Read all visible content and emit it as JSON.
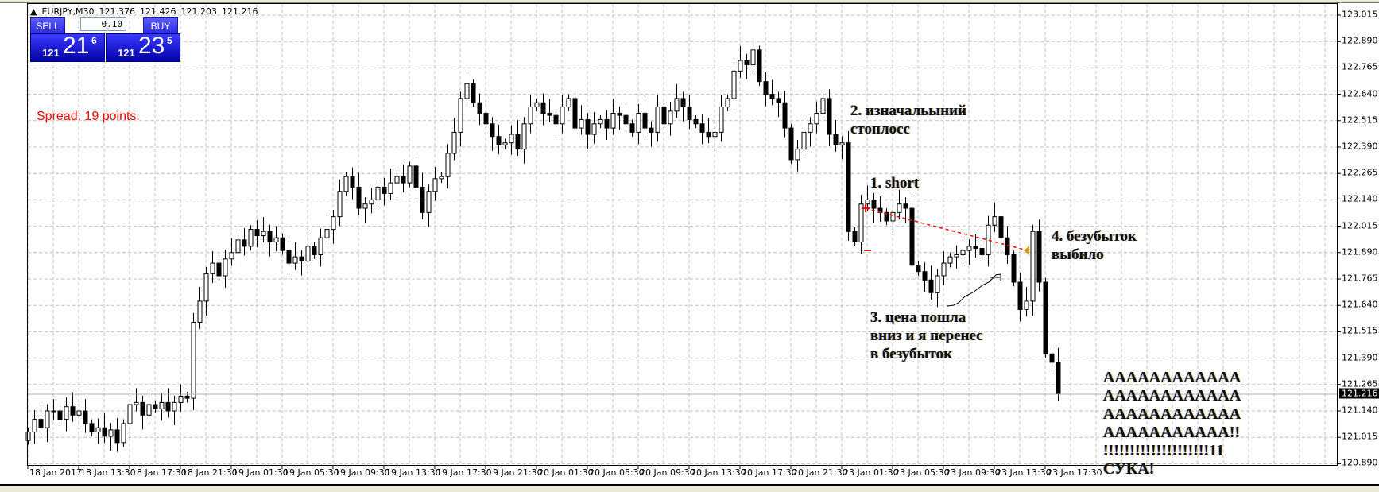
{
  "header": {
    "symbol": "EURJPY,M30",
    "open": "121.376",
    "high": "121.426",
    "low": "121.203",
    "close": "121.216",
    "arrow_icon": "triangle-up"
  },
  "trade_panel": {
    "sell_label": "SELL",
    "buy_label": "BUY",
    "lot": "0.10",
    "sell_price": {
      "big": "121",
      "mid": "21",
      "sup": "6"
    },
    "buy_price": {
      "big": "121",
      "mid": "23",
      "sup": "5"
    },
    "color": "#1a1ae0"
  },
  "spread_text": "Spread: 19 points.",
  "annotations": {
    "note1": "1. short",
    "note2": [
      "2. изначальыний",
      "стоплосс"
    ],
    "note3": [
      "3. цена пошла",
      "вниз и я перенес",
      "в безубыток"
    ],
    "note4": [
      "4. безубыток",
      "выбило"
    ],
    "note5": [
      "AAAAAAAAAAAA",
      "AAAAAAAAAAAA",
      "AAAAAAAAAAAA",
      "AAAAAAAAAAA!!",
      "!!!!!!!!!!!!!!!!!!!!11",
      "СУКА!"
    ]
  },
  "chart_data": {
    "type": "candlestick",
    "symbol": "EURJPY",
    "timeframe": "M30",
    "ylim": [
      120.89,
      123.015
    ],
    "grid": true,
    "current_price": "121.216",
    "price_ticks": [
      "123.015",
      "122.890",
      "122.765",
      "122.640",
      "122.515",
      "122.390",
      "122.265",
      "122.140",
      "122.015",
      "121.890",
      "121.765",
      "121.640",
      "121.515",
      "121.390",
      "121.265",
      "121.140",
      "121.015",
      "120.890"
    ],
    "date_ticks": [
      "18 Jan 2017",
      "18 Jan 13:30",
      "18 Jan 17:30",
      "18 Jan 21:30",
      "19 Jan 01:30",
      "19 Jan 05:30",
      "19 Jan 09:30",
      "19 Jan 13:30",
      "19 Jan 17:30",
      "19 Jan 21:30",
      "20 Jan 01:30",
      "20 Jan 05:30",
      "20 Jan 09:30",
      "20 Jan 13:30",
      "20 Jan 17:30",
      "20 Jan 21:30",
      "23 Jan 01:30",
      "23 Jan 05:30",
      "23 Jan 09:30",
      "23 Jan 13:30",
      "23 Jan 17:30"
    ],
    "close": [
      121.04,
      121.1,
      121.06,
      121.14,
      121.14,
      121.1,
      121.16,
      121.12,
      121.14,
      121.08,
      121.04,
      121.06,
      121.02,
      121.05,
      120.99,
      121.08,
      121.17,
      121.18,
      121.12,
      121.17,
      121.15,
      121.18,
      121.14,
      121.18,
      121.21,
      121.2,
      121.56,
      121.66,
      121.79,
      121.84,
      121.78,
      121.86,
      121.89,
      121.95,
      121.92,
      122.0,
      121.97,
      121.99,
      121.94,
      121.96,
      121.9,
      121.84,
      121.87,
      121.85,
      121.92,
      121.88,
      121.96,
      122.0,
      122.06,
      122.18,
      122.25,
      122.2,
      122.1,
      122.12,
      122.14,
      122.2,
      122.17,
      122.22,
      122.25,
      122.22,
      122.3,
      122.2,
      122.08,
      122.18,
      122.24,
      122.25,
      122.36,
      122.46,
      122.62,
      122.69,
      122.6,
      122.55,
      122.5,
      122.44,
      122.4,
      122.41,
      122.45,
      122.38,
      122.5,
      122.58,
      122.6,
      122.55,
      122.54,
      122.5,
      122.58,
      122.62,
      122.48,
      122.52,
      122.45,
      122.5,
      122.52,
      122.48,
      122.55,
      122.54,
      122.5,
      122.46,
      122.55,
      122.48,
      122.46,
      122.58,
      122.5,
      122.56,
      122.62,
      122.58,
      122.52,
      122.5,
      122.46,
      122.44,
      122.46,
      122.58,
      122.62,
      122.75,
      122.8,
      122.78,
      122.85,
      122.7,
      122.64,
      122.62,
      122.6,
      122.48,
      122.33,
      122.38,
      122.46,
      122.5,
      122.55,
      122.62,
      122.45,
      122.4,
      122.41,
      121.99,
      121.94,
      122.12,
      122.14,
      122.1,
      122.08,
      122.04,
      122.08,
      122.12,
      122.1,
      121.83,
      121.8,
      121.76,
      121.7,
      121.78,
      121.84,
      121.87,
      121.88,
      121.9,
      121.92,
      121.91,
      121.88,
      122.02,
      122.06,
      121.96,
      121.88,
      121.75,
      121.62,
      121.66,
      121.99,
      121.75,
      121.41,
      121.37,
      121.22
    ],
    "short_entry_price": 122.1,
    "breakeven_price": 121.9,
    "initial_stop_price": 121.9,
    "colors": {
      "bull_body": "#ffffff",
      "bear_body": "#000000",
      "trendline": "#ff0000",
      "marker": "#d4a017",
      "spread_text": "#ff0000",
      "grid": "#c0c0c0"
    }
  }
}
